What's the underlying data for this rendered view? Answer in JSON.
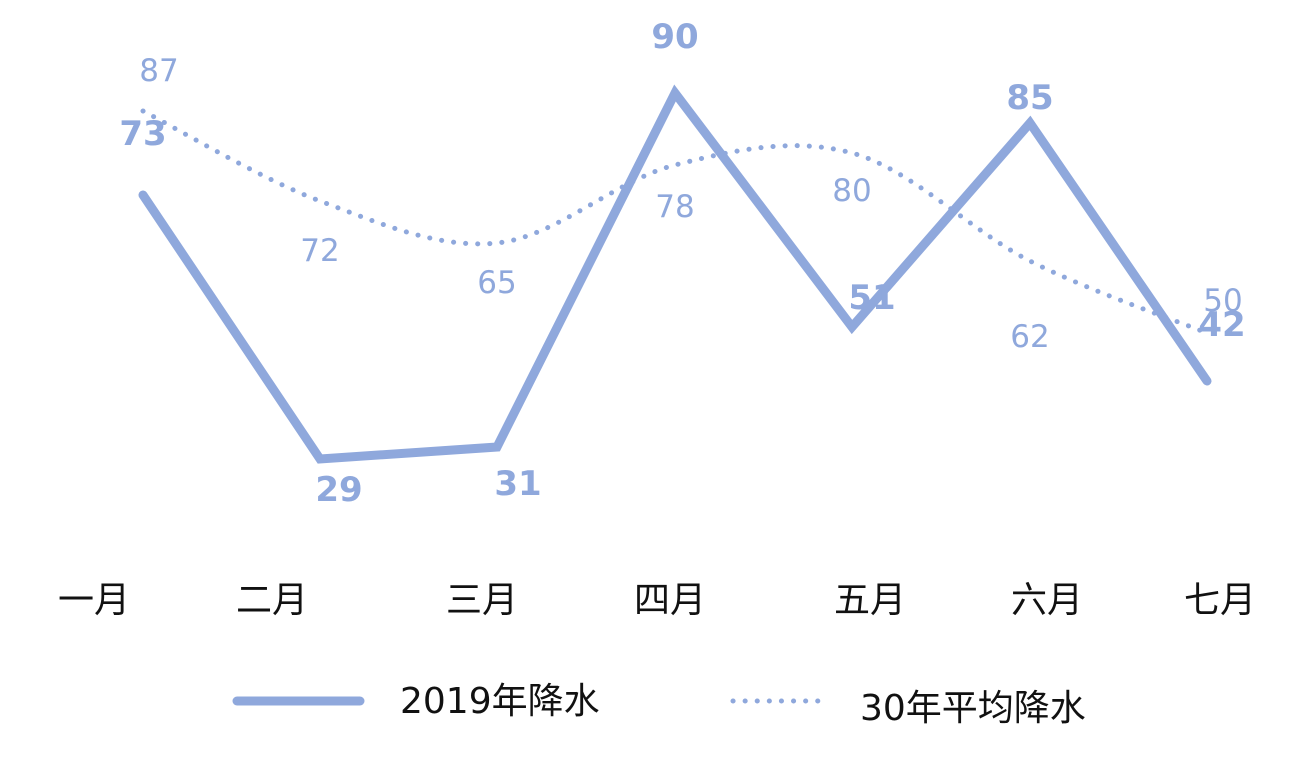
{
  "chart_data": {
    "type": "line",
    "categories": [
      "一月",
      "二月",
      "三月",
      "四月",
      "五月",
      "六月",
      "七月"
    ],
    "series": [
      {
        "name": "2019年降水",
        "values": [
          73,
          29,
          31,
          90,
          51,
          85,
          42
        ],
        "style": "solid",
        "color": "#8FA8DC"
      },
      {
        "name": "30年平均降水",
        "values": [
          87,
          72,
          65,
          78,
          80,
          62,
          50
        ],
        "style": "dotted",
        "color": "#8FA8DC"
      }
    ],
    "legend_position": "bottom",
    "grid": false,
    "axis_lines": false
  }
}
